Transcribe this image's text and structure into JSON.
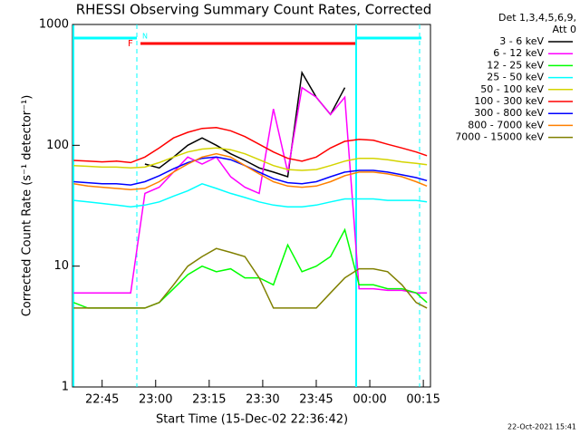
{
  "chart_data": {
    "type": "line",
    "title": "RHESSI Observing Summary Count Rates, Corrected",
    "x_label": "Start Time (15-Dec-02 22:36:42)",
    "y_label": "Corrected Count Rate (s⁻¹ detector⁻¹)",
    "legend_title": [
      "Det 1,3,4,5,6,9,",
      "Att 0"
    ],
    "timestamp": "22-Oct-2021 15:41",
    "annotations": [
      "N",
      "F"
    ],
    "log_y": true,
    "ylim": [
      1,
      1000
    ],
    "yticks": [
      1,
      10,
      100,
      1000
    ],
    "xlim": [
      1356.7,
      1457
    ],
    "xticks": [
      {
        "value": 1365,
        "label": "22:45"
      },
      {
        "value": 1380,
        "label": "23:00"
      },
      {
        "value": 1395,
        "label": "23:15"
      },
      {
        "value": 1410,
        "label": "23:30"
      },
      {
        "value": 1425,
        "label": "23:45"
      },
      {
        "value": 1440,
        "label": "00:00"
      },
      {
        "value": 1455,
        "label": "00:15"
      }
    ],
    "x": [
      1357,
      1361,
      1365,
      1369,
      1373,
      1377,
      1381,
      1385,
      1389,
      1393,
      1397,
      1401,
      1405,
      1409,
      1413,
      1417,
      1421,
      1425,
      1429,
      1433,
      1437,
      1441,
      1445,
      1449,
      1453,
      1456
    ],
    "series": [
      {
        "name": "3 - 6 keV",
        "color": "#000000",
        "values": [
          null,
          null,
          null,
          null,
          null,
          70,
          65,
          80,
          100,
          115,
          100,
          85,
          75,
          65,
          60,
          55,
          400,
          250,
          180,
          300,
          null,
          null,
          null,
          null,
          null,
          null
        ]
      },
      {
        "name": "6 - 12 keV",
        "color": "#ff00ff",
        "values": [
          6,
          6,
          6,
          6,
          6,
          40,
          45,
          60,
          80,
          70,
          80,
          55,
          45,
          40,
          200,
          60,
          300,
          250,
          180,
          250,
          6.5,
          6.5,
          6.3,
          6.3,
          6,
          6
        ]
      },
      {
        "name": "12 - 25 keV",
        "color": "#00ff00",
        "values": [
          5,
          4.5,
          4.5,
          4.5,
          4.5,
          4.5,
          5,
          6.5,
          8.5,
          10,
          9,
          9.5,
          8,
          8,
          7,
          15,
          9,
          10,
          12,
          20,
          7,
          7,
          6.5,
          6.5,
          6,
          5
        ]
      },
      {
        "name": "25 - 50 keV",
        "color": "#00ffff",
        "values": [
          35,
          34,
          33,
          32,
          31,
          32,
          34,
          38,
          42,
          48,
          44,
          40,
          37,
          34,
          32,
          31,
          31,
          32,
          34,
          36,
          36,
          36,
          35,
          35,
          35,
          34
        ]
      },
      {
        "name": "50 - 100 keV",
        "color": "#d4d400",
        "values": [
          68,
          67,
          66,
          66,
          65,
          66,
          72,
          80,
          88,
          93,
          95,
          92,
          85,
          76,
          68,
          63,
          62,
          63,
          68,
          74,
          78,
          78,
          76,
          73,
          71,
          69
        ]
      },
      {
        "name": "100 - 300 keV",
        "color": "#ff0000",
        "values": [
          75,
          74,
          73,
          74,
          72,
          80,
          95,
          115,
          128,
          138,
          140,
          132,
          118,
          102,
          88,
          78,
          74,
          80,
          95,
          108,
          112,
          110,
          102,
          95,
          88,
          82
        ]
      },
      {
        "name": "300 - 800 keV",
        "color": "#0000ff",
        "values": [
          50,
          49,
          48,
          48,
          47,
          50,
          56,
          64,
          72,
          78,
          80,
          76,
          68,
          60,
          53,
          49,
          48,
          50,
          55,
          60,
          62,
          62,
          60,
          57,
          54,
          51
        ]
      },
      {
        "name": "800 - 7000 keV",
        "color": "#ff8000",
        "values": [
          48,
          46,
          45,
          44,
          43,
          44,
          50,
          60,
          70,
          80,
          85,
          80,
          68,
          58,
          50,
          46,
          45,
          46,
          50,
          56,
          60,
          60,
          58,
          55,
          50,
          46
        ]
      },
      {
        "name": "7000 - 15000 keV",
        "color": "#808000",
        "values": [
          4.5,
          4.5,
          4.5,
          4.5,
          4.5,
          4.5,
          5,
          7,
          10,
          12,
          14,
          13,
          12,
          8,
          4.5,
          4.5,
          4.5,
          4.5,
          6,
          8,
          9.5,
          9.5,
          9,
          7,
          5,
          4.5
        ]
      }
    ]
  }
}
